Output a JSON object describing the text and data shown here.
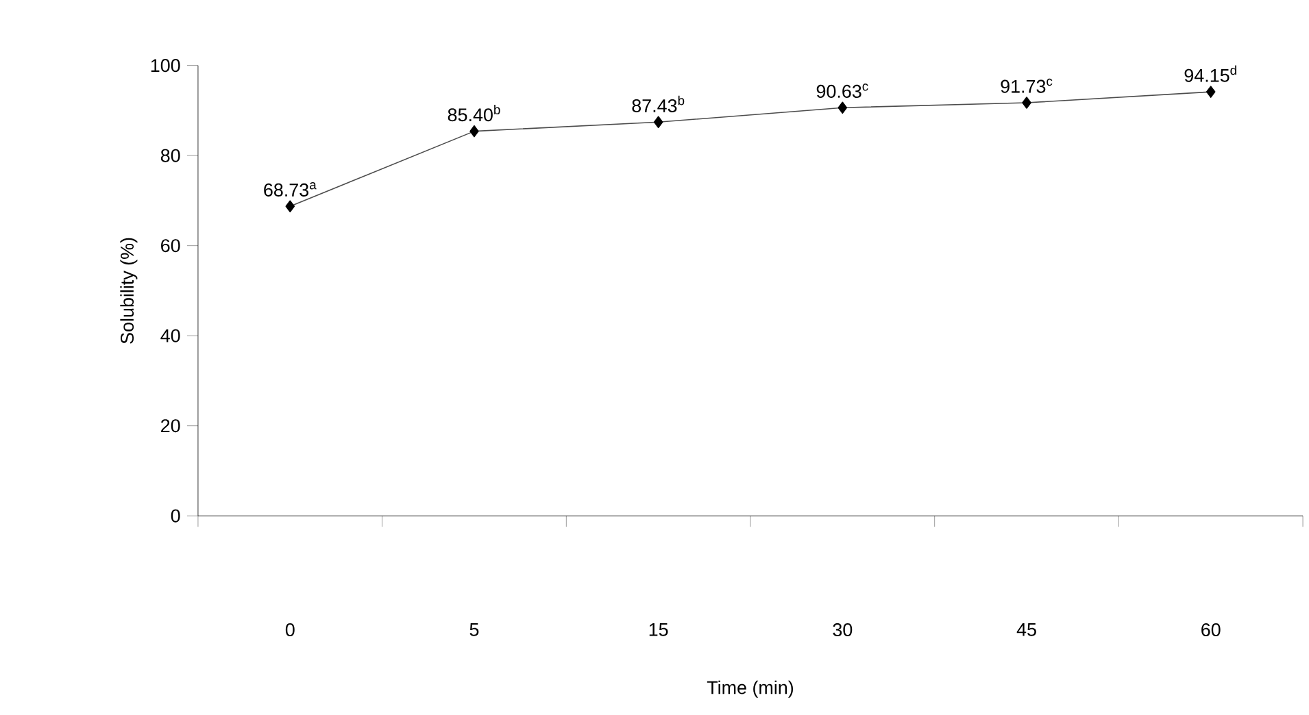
{
  "chart_data": {
    "type": "line",
    "xlabel": "Time (min)",
    "ylabel": "Solubility (%)",
    "categories": [
      "0",
      "5",
      "15",
      "30",
      "45",
      "60"
    ],
    "values": [
      68.73,
      85.4,
      87.43,
      90.63,
      91.73,
      94.15
    ],
    "value_labels": [
      "68.73$^{a}$",
      "85.40$^{b}$",
      "87.43$^{b}$",
      "90.63$^{c}$",
      "91.73$^{c}$",
      "94.15$^{d}$"
    ],
    "color": "#000000",
    "marker": "diamond",
    "line_style": "solid",
    "ylim": [
      0,
      100
    ],
    "yticks": [
      0,
      20,
      40,
      60,
      80,
      100
    ]
  }
}
